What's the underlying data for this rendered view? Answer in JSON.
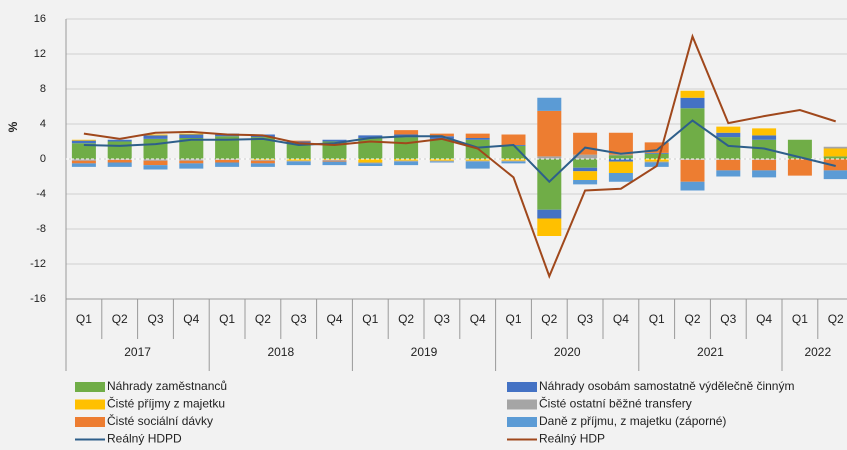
{
  "chart_data": {
    "type": "stacked-bar-line",
    "y_label": "%",
    "categories": [
      "Q1",
      "Q2",
      "Q3",
      "Q4",
      "Q1",
      "Q2",
      "Q3",
      "Q4",
      "Q1",
      "Q2",
      "Q3",
      "Q4",
      "Q1",
      "Q2",
      "Q3",
      "Q4",
      "Q1",
      "Q2",
      "Q3",
      "Q4",
      "Q1",
      "Q2"
    ],
    "years": [
      "2017",
      "2017",
      "2017",
      "2017",
      "2018",
      "2018",
      "2018",
      "2018",
      "2019",
      "2019",
      "2019",
      "2019",
      "2020",
      "2020",
      "2020",
      "2020",
      "2021",
      "2021",
      "2021",
      "2021",
      "2022",
      "2022"
    ],
    "ylim": [
      -16,
      16
    ],
    "yticks": [
      -16,
      -12,
      -8,
      -4,
      0,
      4,
      8,
      12,
      16
    ],
    "grid": true,
    "series": [
      {
        "name": "Náhrady zaměstnanců",
        "color": "#70ad47",
        "kind": "bar",
        "values": [
          1.8,
          2.0,
          2.3,
          2.4,
          2.6,
          2.5,
          1.8,
          2.0,
          2.4,
          2.5,
          2.3,
          2.2,
          1.5,
          -5.8,
          -1.0,
          0.4,
          0.6,
          5.8,
          2.5,
          2.2,
          2.2,
          0.3
        ]
      },
      {
        "name": "Náhrady osobám samostatně výdělečně činným",
        "color": "#4472c4",
        "kind": "bar",
        "values": [
          0.3,
          0.2,
          0.4,
          0.4,
          0.3,
          0.3,
          0.2,
          0.2,
          0.3,
          0.3,
          0.3,
          0.2,
          0.1,
          -1.0,
          -0.4,
          -0.3,
          0.1,
          1.2,
          0.5,
          0.5,
          0.0,
          0.0
        ]
      },
      {
        "name": "Čisté příjmy z majetku",
        "color": "#ffc000",
        "kind": "bar",
        "values": [
          0.1,
          0.0,
          0.1,
          0.1,
          0.0,
          -0.1,
          -0.2,
          -0.1,
          -0.4,
          -0.2,
          -0.2,
          -0.2,
          -0.2,
          -2.0,
          -1.0,
          -1.3,
          -0.3,
          0.8,
          0.7,
          0.8,
          0.0,
          0.9
        ]
      },
      {
        "name": "Čisté ostatní běžné transfery",
        "color": "#a5a5a5",
        "kind": "bar",
        "values": [
          -0.2,
          -0.1,
          -0.2,
          -0.2,
          -0.1,
          -0.1,
          -0.1,
          -0.1,
          -0.1,
          -0.1,
          -0.1,
          -0.1,
          -0.1,
          0.3,
          0.5,
          0.1,
          -0.1,
          -0.1,
          -0.1,
          -0.1,
          0.0,
          0.2
        ]
      },
      {
        "name": "Čisté sociální dávky",
        "color": "#ed7d31",
        "kind": "bar",
        "values": [
          -0.3,
          -0.3,
          -0.5,
          -0.3,
          -0.3,
          -0.3,
          0.1,
          -0.1,
          0.0,
          0.5,
          0.3,
          0.5,
          1.2,
          5.2,
          2.5,
          2.5,
          1.2,
          -2.5,
          -1.2,
          -1.2,
          -1.9,
          -1.3
        ]
      },
      {
        "name": "Daně z příjmu, z majetku (záporné)",
        "color": "#5b9bd5",
        "kind": "bar",
        "values": [
          -0.4,
          -0.5,
          -0.5,
          -0.6,
          -0.5,
          -0.4,
          -0.4,
          -0.4,
          -0.3,
          -0.4,
          -0.1,
          -0.8,
          -0.2,
          1.5,
          -0.5,
          -1.0,
          -0.5,
          -1.0,
          -0.7,
          -0.8,
          0.0,
          -1.0
        ]
      },
      {
        "name": "Reálný HDPD",
        "color": "#2e5f8a",
        "kind": "line",
        "values": [
          1.6,
          1.5,
          1.7,
          2.2,
          2.2,
          2.3,
          1.6,
          1.8,
          2.4,
          2.6,
          2.6,
          1.3,
          1.6,
          -2.6,
          1.3,
          0.6,
          1.0,
          4.4,
          1.5,
          1.2,
          0.2,
          -0.8
        ]
      },
      {
        "name": "Reálný HDP",
        "color": "#a0481c",
        "kind": "line",
        "values": [
          2.9,
          2.3,
          3.0,
          3.1,
          2.8,
          2.7,
          1.8,
          1.6,
          2.0,
          1.8,
          2.3,
          1.2,
          -2.1,
          -13.4,
          -3.6,
          -3.4,
          -0.8,
          14.0,
          4.1,
          4.9,
          5.6,
          4.3
        ]
      }
    ]
  }
}
